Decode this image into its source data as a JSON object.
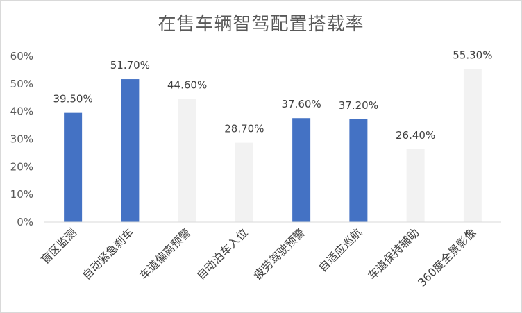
{
  "chart_data": {
    "type": "bar",
    "title": "在售车辆智驾配置搭载率",
    "categories": [
      "盲区监测",
      "自动紧急刹车",
      "车道偏离预警",
      "自动泊车入位",
      "疲劳驾驶预警",
      "自适应巡航",
      "车道保持辅助",
      "360度全景影像"
    ],
    "values": [
      39.5,
      51.7,
      44.6,
      28.7,
      37.6,
      37.2,
      26.4,
      55.3
    ],
    "data_labels": [
      "39.50%",
      "51.70%",
      "44.60%",
      "28.70%",
      "37.60%",
      "37.20%",
      "26.40%",
      "55.30%"
    ],
    "highlighted": [
      true,
      true,
      false,
      false,
      true,
      true,
      false,
      false
    ],
    "ylim": [
      0,
      60
    ],
    "yticks": [
      0,
      10,
      20,
      30,
      40,
      50,
      60
    ],
    "ytick_labels": [
      "0%",
      "10%",
      "20%",
      "30%",
      "40%",
      "50%",
      "60%"
    ],
    "grid": false,
    "legend": "none",
    "colors": {
      "highlight": "#4472c4",
      "muted": "#f2f2f2",
      "axis": "#d9d9d9"
    }
  }
}
